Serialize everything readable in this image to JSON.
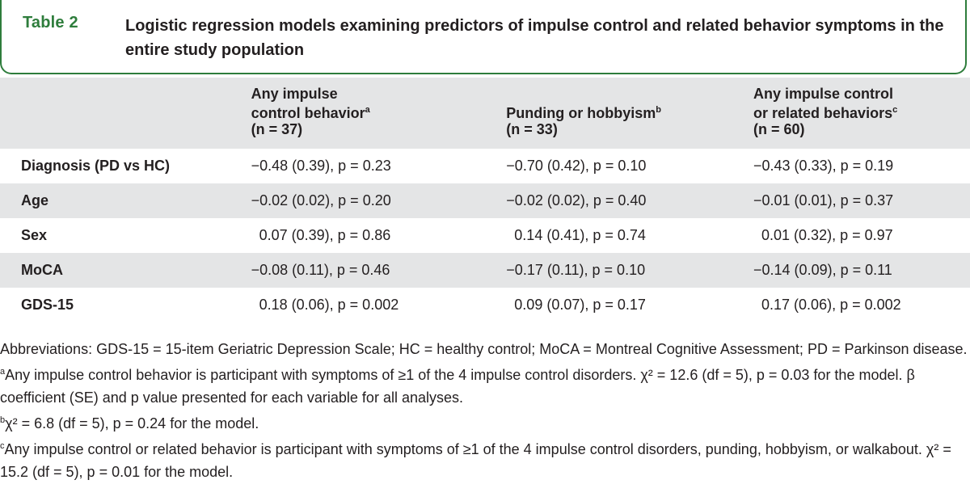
{
  "title": {
    "label": "Table 2",
    "caption": "Logistic regression models examining predictors of impulse control and related behavior symptoms in the entire study population"
  },
  "table": {
    "columns": [
      {
        "text": "Any impulse\ncontrol behavior",
        "sup": "a",
        "n": "(n = 37)"
      },
      {
        "text": "Punding or hobbyism",
        "sup": "b",
        "n": "(n = 33)"
      },
      {
        "text": "Any impulse control\nor related behaviors",
        "sup": "c",
        "n": "(n = 60)"
      }
    ],
    "rows": [
      {
        "label": "Diagnosis (PD vs HC)",
        "c1": "−0.48 (0.39), p = 0.23",
        "c2": "−0.70 (0.42), p = 0.10",
        "c3": "−0.43 (0.33), p = 0.19"
      },
      {
        "label": "Age",
        "c1": "−0.02 (0.02), p = 0.20",
        "c2": "−0.02 (0.02), p = 0.40",
        "c3": "−0.01 (0.01), p = 0.37"
      },
      {
        "label": "Sex",
        "c1": "  0.07 (0.39), p = 0.86",
        "c2": "  0.14 (0.41), p = 0.74",
        "c3": "  0.01 (0.32), p = 0.97"
      },
      {
        "label": "MoCA",
        "c1": "−0.08 (0.11), p = 0.46",
        "c2": "−0.17 (0.11), p = 0.10",
        "c3": "−0.14 (0.09), p = 0.11"
      },
      {
        "label": "GDS-15",
        "c1": "  0.18 (0.06), p = 0.002",
        "c2": "  0.09 (0.07), p = 0.17",
        "c3": "  0.17 (0.06), p = 0.002"
      }
    ]
  },
  "notes": {
    "abbreviations": "Abbreviations: GDS-15 = 15-item Geriatric Depression Scale; HC = healthy control; MoCA = Montreal Cognitive Assessment; PD = Parkinson disease.",
    "a": {
      "marker": "a",
      "text": "Any impulse control behavior is participant with symptoms of ≥1 of the 4 impulse control disorders. χ² = 12.6 (df = 5), p = 0.03 for the model. β coefficient (SE) and p value presented for each variable for all analyses."
    },
    "b": {
      "marker": "b",
      "text": "χ² = 6.8 (df = 5), p = 0.24 for the model."
    },
    "c": {
      "marker": "c",
      "text": "Any impulse control or related behavior is participant with symptoms of ≥1 of the 4 impulse control disorders, punding, hobbyism, or walkabout. χ² = 15.2 (df = 5), p = 0.01 for the model."
    }
  }
}
